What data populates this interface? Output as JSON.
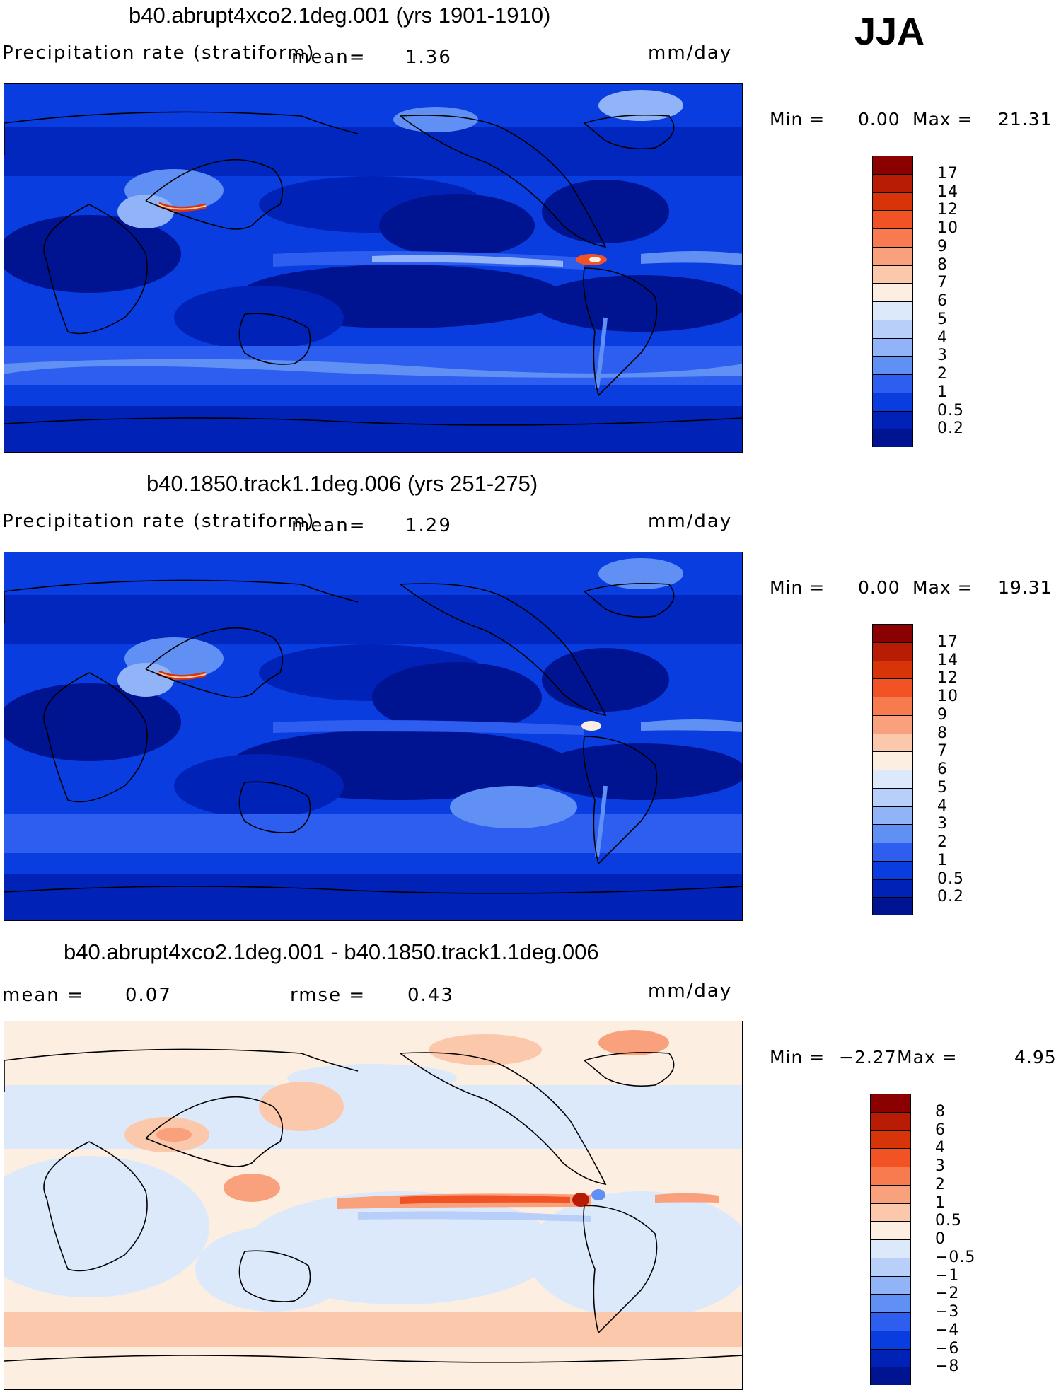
{
  "season": "JJA",
  "panels": [
    {
      "id": "p1",
      "title": "b40.abrupt4xco2.1deg.001 (yrs 1901-1910)",
      "variable": "Precipitation rate (stratiform)",
      "mean_label": "mean=",
      "mean_value": "1.36",
      "units": "mm/day",
      "min_label": "Min =",
      "min_value": "0.00",
      "max_label": "Max =",
      "max_value": "21.31",
      "colorbar": {
        "labels": [
          "17",
          "14",
          "12",
          "10",
          "9",
          "8",
          "7",
          "6",
          "5",
          "4",
          "3",
          "2",
          "1",
          "0.5",
          "0.2"
        ],
        "colors": [
          "#8b0000",
          "#b81c04",
          "#d7340a",
          "#f25324",
          "#f77b4f",
          "#f9a07d",
          "#fcc8ab",
          "#fdeee2",
          "#dce9fa",
          "#b8d0f9",
          "#91b3f8",
          "#6190f5",
          "#2d5ef0",
          "#0a3ddf",
          "#0022b7",
          "#001391"
        ]
      },
      "chart_data": {
        "type": "heatmap",
        "title": "b40.abrupt4xco2.1deg.001 (yrs 1901-1910)",
        "field": "Precipitation rate (stratiform)",
        "units": "mm/day",
        "mean": 1.36,
        "min": 0.0,
        "max": 21.31,
        "levels": [
          0.2,
          0.5,
          1,
          2,
          3,
          4,
          5,
          6,
          7,
          8,
          9,
          10,
          12,
          14,
          17
        ]
      }
    },
    {
      "id": "p2",
      "title": "b40.1850.track1.1deg.006 (yrs 251-275)",
      "variable": "Precipitation rate (stratiform)",
      "mean_label": "mean=",
      "mean_value": "1.29",
      "units": "mm/day",
      "min_label": "Min =",
      "min_value": "0.00",
      "max_label": "Max =",
      "max_value": "19.31",
      "colorbar": {
        "labels": [
          "17",
          "14",
          "12",
          "10",
          "9",
          "8",
          "7",
          "6",
          "5",
          "4",
          "3",
          "2",
          "1",
          "0.5",
          "0.2"
        ],
        "colors": [
          "#8b0000",
          "#b81c04",
          "#d7340a",
          "#f25324",
          "#f77b4f",
          "#f9a07d",
          "#fcc8ab",
          "#fdeee2",
          "#dce9fa",
          "#b8d0f9",
          "#91b3f8",
          "#6190f5",
          "#2d5ef0",
          "#0a3ddf",
          "#0022b7",
          "#001391"
        ]
      },
      "chart_data": {
        "type": "heatmap",
        "title": "b40.1850.track1.1deg.006 (yrs 251-275)",
        "field": "Precipitation rate (stratiform)",
        "units": "mm/day",
        "mean": 1.29,
        "min": 0.0,
        "max": 19.31,
        "levels": [
          0.2,
          0.5,
          1,
          2,
          3,
          4,
          5,
          6,
          7,
          8,
          9,
          10,
          12,
          14,
          17
        ]
      }
    },
    {
      "id": "p3",
      "title": "b40.abrupt4xco2.1deg.001 - b40.1850.track1.1deg.006",
      "mean_label": "mean =",
      "mean_value": "0.07",
      "rmse_label": "rmse =",
      "rmse_value": "0.43",
      "units": "mm/day",
      "min_label": "Min =",
      "min_value": "−2.27",
      "max_label": "Max =",
      "max_value": "4.95",
      "colorbar": {
        "labels": [
          "8",
          "6",
          "4",
          "3",
          "2",
          "1",
          "0.5",
          "0",
          "−0.5",
          "−1",
          "−2",
          "−3",
          "−4",
          "−6",
          "−8"
        ],
        "colors": [
          "#8b0000",
          "#b81c04",
          "#d7340a",
          "#f25324",
          "#f77b4f",
          "#f9a07d",
          "#fcc8ab",
          "#fdeee2",
          "#dce9fa",
          "#b8d0f9",
          "#91b3f8",
          "#6190f5",
          "#2d5ef0",
          "#0a3ddf",
          "#0022b7",
          "#001391"
        ]
      },
      "chart_data": {
        "type": "heatmap",
        "title": "b40.abrupt4xco2.1deg.001 - b40.1850.track1.1deg.006",
        "units": "mm/day",
        "mean": 0.07,
        "rmse": 0.43,
        "min": -2.27,
        "max": 4.95,
        "levels": [
          -8,
          -6,
          -4,
          -3,
          -2,
          -1,
          -0.5,
          0,
          0.5,
          1,
          2,
          3,
          4,
          6,
          8
        ]
      }
    }
  ]
}
